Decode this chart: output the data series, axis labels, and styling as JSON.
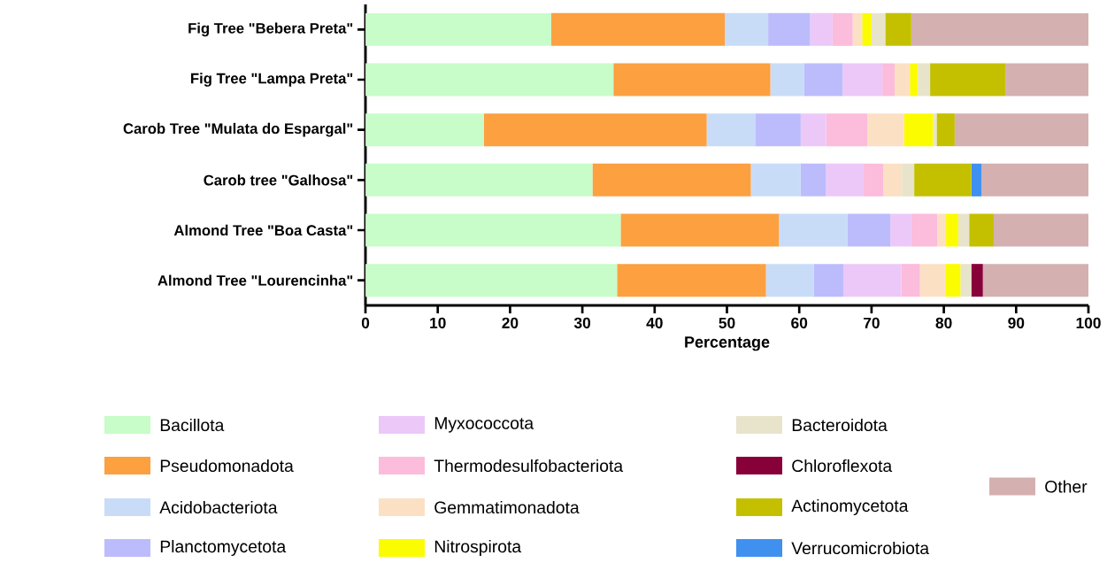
{
  "chart_data": {
    "type": "bar",
    "orientation": "horizontal",
    "stacked": true,
    "xlabel": "Percentage",
    "categories": [
      "Fig Tree \"Bebera Preta\"",
      "Fig Tree \"Lampa Preta\"",
      "Carob Tree \"Mulata do Espargal\"",
      "Carob tree \"Galhosa\"",
      "Almond Tree \"Boa Casta\"",
      "Almond Tree \"Lourencinha\""
    ],
    "xlim": [
      0,
      100
    ],
    "xticks": [
      0,
      10,
      20,
      30,
      40,
      50,
      60,
      70,
      80,
      90,
      100
    ],
    "grid": false,
    "legend": "bottom",
    "series": [
      {
        "name": "Bacillota",
        "color": "#c8fcc8",
        "values": [
          25.7,
          34.3,
          16.4,
          31.4,
          35.3,
          34.8
        ]
      },
      {
        "name": "Pseudomonadota",
        "color": "#fca040",
        "values": [
          24.0,
          21.7,
          30.8,
          21.9,
          21.9,
          20.6
        ]
      },
      {
        "name": "Acidobacteriota",
        "color": "#c8dcf8",
        "values": [
          6.0,
          4.7,
          6.7,
          6.9,
          9.5,
          6.6
        ]
      },
      {
        "name": "Planctomycetota",
        "color": "#bcbcfc",
        "values": [
          5.8,
          5.3,
          6.3,
          3.5,
          5.9,
          4.1
        ]
      },
      {
        "name": "Myxococcota",
        "color": "#ecc8f8",
        "values": [
          3.1,
          5.5,
          3.5,
          5.2,
          2.9,
          8.0
        ]
      },
      {
        "name": "Thermodesulfobacteriota",
        "color": "#fcbcdc",
        "values": [
          2.8,
          1.7,
          5.7,
          2.7,
          3.6,
          2.6
        ]
      },
      {
        "name": "Gemmatimonadota",
        "color": "#fce0c4",
        "values": [
          1.3,
          2.1,
          5.1,
          2.6,
          1.2,
          3.5
        ]
      },
      {
        "name": "Nitrospirota",
        "color": "#fcfc00",
        "values": [
          1.3,
          1.1,
          4.0,
          null,
          1.7,
          2.1
        ]
      },
      {
        "name": "Bacteroidota",
        "color": "#e8e4cc",
        "values": [
          1.9,
          1.7,
          0.5,
          1.7,
          1.5,
          1.5
        ]
      },
      {
        "name": "Chloroflexota",
        "color": "#880038",
        "values": [
          null,
          null,
          null,
          null,
          null,
          1.6
        ]
      },
      {
        "name": "Actinomycetota",
        "color": "#c4c000",
        "values": [
          3.6,
          10.4,
          2.5,
          7.9,
          3.4,
          null
        ]
      },
      {
        "name": "Verrucomicrobiota",
        "color": "#4090f0",
        "values": [
          null,
          null,
          null,
          1.4,
          null,
          null
        ]
      },
      {
        "name": "Other",
        "color": "#d4b0b0",
        "values": [
          24.5,
          11.5,
          18.5,
          14.8,
          13.1,
          14.6
        ]
      }
    ]
  }
}
